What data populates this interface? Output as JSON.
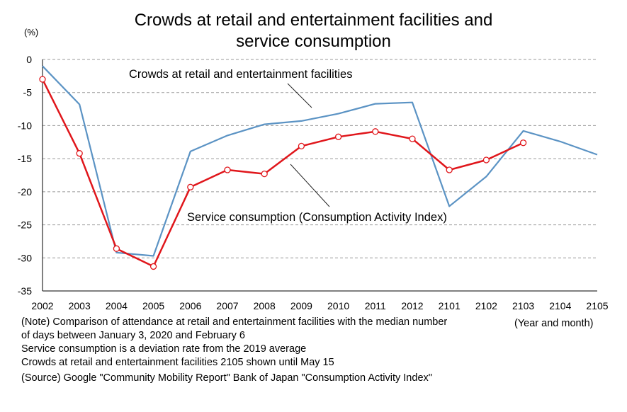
{
  "chart_data": {
    "type": "line",
    "title_lines": [
      "Crowds at retail and entertainment facilities and",
      "service consumption"
    ],
    "yunit": "(%)",
    "xunit": "(Year and month)",
    "ylim": [
      -35,
      0
    ],
    "yticks": [
      0,
      -5,
      -10,
      -15,
      -20,
      -25,
      -30,
      -35
    ],
    "grid": "horizontal dashed",
    "categories": [
      "2002",
      "2003",
      "2004",
      "2005",
      "2006",
      "2007",
      "2008",
      "2009",
      "2010",
      "2011",
      "2012",
      "2101",
      "2102",
      "2103",
      "2104",
      "2105"
    ],
    "series": [
      {
        "name": "Crowds at retail and entertainment facilities",
        "color": "#5b93c4",
        "values": [
          -1.0,
          -6.8,
          -29.2,
          -29.7,
          -13.9,
          -11.5,
          -9.8,
          -9.3,
          -8.2,
          -6.7,
          -6.5,
          -22.2,
          -17.7,
          -10.8,
          -12.4,
          -14.4
        ]
      },
      {
        "name": "Service consumption (Consumption Activity Index)",
        "color": "#e0161b",
        "values": [
          -3.0,
          -14.2,
          -28.6,
          -31.3,
          -19.3,
          -16.7,
          -17.3,
          -13.1,
          -11.7,
          -10.9,
          -12.0,
          -16.7,
          -15.2,
          -12.6,
          null,
          null
        ]
      }
    ]
  },
  "notes": [
    "(Note) Comparison of attendance at retail and entertainment facilities with the median number",
    "of days between January 3, 2020 and February 6",
    "Service consumption is a deviation rate from the 2019 average",
    "Crowds at retail and entertainment facilities 2105 shown until May 15",
    "(Source) Google \"Community Mobility Report\" Bank of Japan \"Consumption Activity Index\""
  ]
}
